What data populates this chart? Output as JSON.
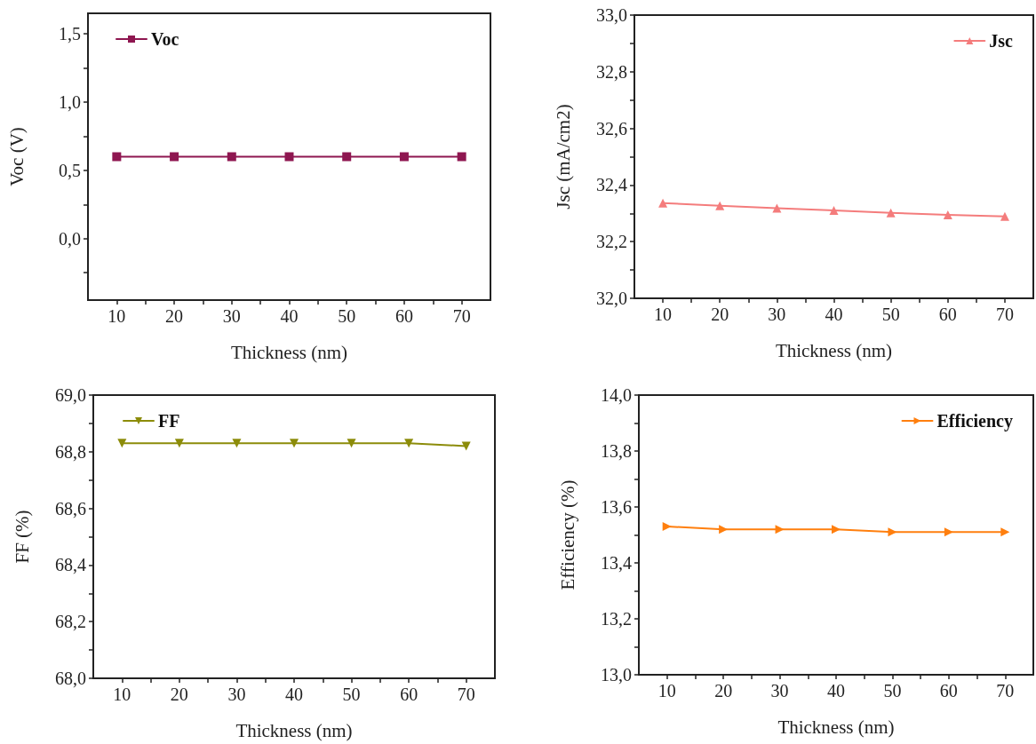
{
  "chart_data": [
    {
      "type": "line",
      "xlabel": "Thickness (nm)",
      "ylabel": "Voc (V)",
      "x": [
        10,
        20,
        30,
        40,
        50,
        60,
        70
      ],
      "series": [
        {
          "name": "Voc",
          "color": "#8e1650",
          "marker": "square",
          "values": [
            0.6,
            0.6,
            0.6,
            0.6,
            0.6,
            0.6,
            0.6
          ]
        }
      ],
      "xlim": [
        5,
        75
      ],
      "xticks": [
        10,
        {
          "value": 15,
          "label": null
        },
        20,
        {
          "value": 25,
          "label": null
        },
        30,
        {
          "value": 35,
          "label": null
        },
        40,
        {
          "value": 45,
          "label": null
        },
        50,
        {
          "value": 55,
          "label": null
        },
        60,
        {
          "value": 65,
          "label": null
        },
        70
      ],
      "ylim": [
        -0.45,
        1.65
      ],
      "yticks": [
        {
          "value": -0.25,
          "label": null
        },
        {
          "value": 0,
          "label": "0,0"
        },
        {
          "value": 0.25,
          "label": null
        },
        {
          "value": 0.5,
          "label": "0,5"
        },
        {
          "value": 0.75,
          "label": null
        },
        {
          "value": 1,
          "label": "1,0"
        },
        {
          "value": 1.25,
          "label": null
        },
        {
          "value": 1.5,
          "label": "1,5"
        }
      ],
      "legend": "top left",
      "grid": false,
      "line_style": "solid"
    },
    {
      "type": "line",
      "xlabel": "Thickness (nm)",
      "ylabel": "Jsc (mA/cm2)",
      "x": [
        10,
        20,
        30,
        40,
        50,
        60,
        70
      ],
      "series": [
        {
          "name": "Jsc",
          "color": "#f47c7c",
          "marker": "triangle",
          "values": [
            32.336,
            32.327,
            32.318,
            32.31,
            32.302,
            32.295,
            32.289
          ]
        }
      ],
      "xlim": [
        5,
        75
      ],
      "xticks": [
        10,
        {
          "value": 15,
          "label": null
        },
        20,
        {
          "value": 25,
          "label": null
        },
        30,
        {
          "value": 35,
          "label": null
        },
        40,
        {
          "value": 45,
          "label": null
        },
        50,
        {
          "value": 55,
          "label": null
        },
        60,
        {
          "value": 65,
          "label": null
        },
        70
      ],
      "ylim": [
        32,
        33
      ],
      "yticks": [
        {
          "value": 32,
          "label": "32,0"
        },
        {
          "value": 32.1,
          "label": null
        },
        {
          "value": 32.2,
          "label": "32,2"
        },
        {
          "value": 32.3,
          "label": null
        },
        {
          "value": 32.4,
          "label": "32,4"
        },
        {
          "value": 32.5,
          "label": null
        },
        {
          "value": 32.6,
          "label": "32,6"
        },
        {
          "value": 32.7,
          "label": null
        },
        {
          "value": 32.8,
          "label": "32,8"
        },
        {
          "value": 32.9,
          "label": null
        },
        {
          "value": 33,
          "label": "33,0"
        }
      ],
      "legend": "top right",
      "grid": false,
      "line_style": "solid"
    },
    {
      "type": "line",
      "xlabel": "Thickness (nm)",
      "ylabel": "FF (%)",
      "x": [
        10,
        20,
        30,
        40,
        50,
        60,
        70
      ],
      "series": [
        {
          "name": "FF",
          "color": "#8c8c0a",
          "marker": "triangle-down",
          "values": [
            68.83,
            68.83,
            68.83,
            68.83,
            68.83,
            68.83,
            68.82
          ]
        }
      ],
      "xlim": [
        5,
        75
      ],
      "xticks": [
        10,
        {
          "value": 15,
          "label": null
        },
        20,
        {
          "value": 25,
          "label": null
        },
        30,
        {
          "value": 35,
          "label": null
        },
        40,
        {
          "value": 45,
          "label": null
        },
        50,
        {
          "value": 55,
          "label": null
        },
        60,
        {
          "value": 65,
          "label": null
        },
        70
      ],
      "ylim": [
        68,
        69
      ],
      "yticks": [
        {
          "value": 68,
          "label": "68,0"
        },
        {
          "value": 68.1,
          "label": null
        },
        {
          "value": 68.2,
          "label": "68,2"
        },
        {
          "value": 68.3,
          "label": null
        },
        {
          "value": 68.4,
          "label": "68,4"
        },
        {
          "value": 68.5,
          "label": null
        },
        {
          "value": 68.6,
          "label": "68,6"
        },
        {
          "value": 68.7,
          "label": null
        },
        {
          "value": 68.8,
          "label": "68,8"
        },
        {
          "value": 68.9,
          "label": null
        },
        {
          "value": 69,
          "label": "69,0"
        }
      ],
      "legend": "top left",
      "grid": false,
      "line_style": "solid"
    },
    {
      "type": "line",
      "xlabel": "Thickness (nm)",
      "ylabel": "Efficiency (%)",
      "x": [
        10,
        20,
        30,
        40,
        50,
        60,
        70
      ],
      "series": [
        {
          "name": "Efficiency",
          "color": "#ff7f0e",
          "marker": "triangle-right",
          "values": [
            13.53,
            13.52,
            13.52,
            13.52,
            13.51,
            13.51,
            13.51
          ]
        }
      ],
      "xlim": [
        5,
        75
      ],
      "xticks": [
        10,
        {
          "value": 15,
          "label": null
        },
        20,
        {
          "value": 25,
          "label": null
        },
        30,
        {
          "value": 35,
          "label": null
        },
        40,
        {
          "value": 45,
          "label": null
        },
        50,
        {
          "value": 55,
          "label": null
        },
        60,
        {
          "value": 65,
          "label": null
        },
        70
      ],
      "ylim": [
        13,
        14
      ],
      "yticks": [
        {
          "value": 13,
          "label": "13,0"
        },
        {
          "value": 13.1,
          "label": null
        },
        {
          "value": 13.2,
          "label": "13,2"
        },
        {
          "value": 13.3,
          "label": null
        },
        {
          "value": 13.4,
          "label": "13,4"
        },
        {
          "value": 13.5,
          "label": null
        },
        {
          "value": 13.6,
          "label": "13,6"
        },
        {
          "value": 13.7,
          "label": null
        },
        {
          "value": 13.8,
          "label": "13,8"
        },
        {
          "value": 13.9,
          "label": null
        },
        {
          "value": 14,
          "label": "14,0"
        }
      ],
      "legend": "top right",
      "grid": false,
      "line_style": "solid"
    }
  ]
}
